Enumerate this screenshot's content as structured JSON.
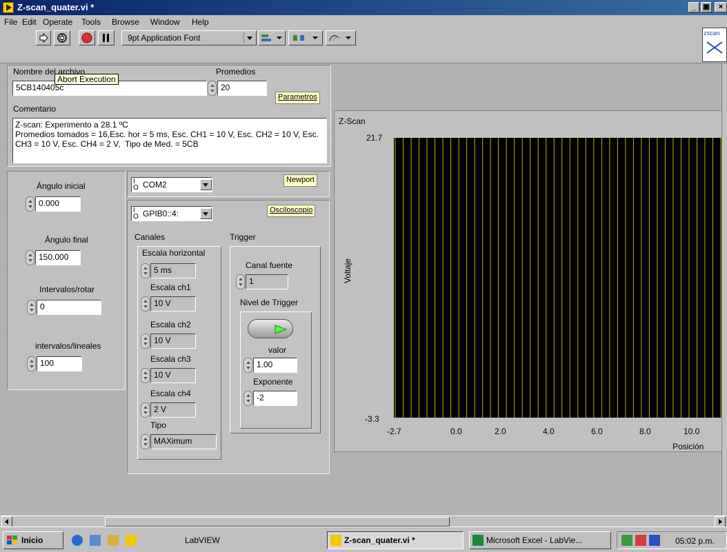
{
  "window": {
    "title": "Z-scan_quater.vi *",
    "controls": {
      "minimize": "_",
      "maximize": "▣",
      "close": "×"
    }
  },
  "menu": [
    "File",
    "Edit",
    "Operate",
    "Tools",
    "Browse",
    "Window",
    "Help"
  ],
  "toolbar": {
    "font": "9pt Application Font",
    "tooltip": "Abort Execution",
    "icon_label": "zscan"
  },
  "file_panel": {
    "filename_label": "Nombre del archivo",
    "filename_value": "5CB140405c",
    "promedios_label": "Promedios",
    "promedios_value": "20",
    "parametros_button": "Parametros",
    "comentario_label": "Comentario",
    "comentario_text": "Z-scan: Experimento a 28.1 ºC\nPromedios tomados = 16,Esc. hor = 5 ms, Esc. CH1 = 10 V, Esc. CH2 = 10 V, Esc. CH3 = 10 V, Esc. CH4 = 2 V,  Tipo de Med. = 5CB"
  },
  "motor_panel": {
    "angulo_inicial_label": "Ángulo inicial",
    "angulo_inicial_value": "0.000",
    "angulo_final_label": "Ángulo final",
    "angulo_final_value": "150.000",
    "intervalos_rotar_label": "Intervalos/rotar",
    "intervalos_rotar_value": "0",
    "intervalos_lineales_label": "intervalos/lineales",
    "intervalos_lineales_value": "100"
  },
  "newport": {
    "port": "COM2",
    "button": "Newport"
  },
  "osciloscopio": {
    "address": "GPIB0::4:",
    "button": "Osciloscopio",
    "canales_label": "Canales",
    "trigger_label": "Trigger",
    "escala_horizontal_label": "Escala horizontal",
    "escala_horizontal_value": "5 ms",
    "ch1_label": "Escala ch1",
    "ch1_value": "10 V",
    "ch2_label": "Escala ch2",
    "ch2_value": "10 V",
    "ch3_label": "Escala ch3",
    "ch3_value": "10 V",
    "ch4_label": "Escala ch4",
    "ch4_value": "2 V",
    "tipo_label": "Tipo",
    "tipo_value": "MAXimum",
    "canal_fuente_label": "Canal fuente",
    "canal_fuente_value": "1",
    "nivel_label": "Nivel de Trigger",
    "valor_label": "valor",
    "valor_value": "1.00",
    "exponente_label": "Exponente",
    "exponente_value": "-2"
  },
  "graph": {
    "title": "Z-Scan",
    "xlabel": "Posición",
    "ylabel": "Voltaje",
    "ymax_label": "21.7",
    "ymin_label": "-3.3",
    "xticks": [
      "-2.7",
      "0.0",
      "2.0",
      "4.0",
      "6.0",
      "8.0",
      "10.0"
    ],
    "grid_color": "#c8b400",
    "line_count": 42
  },
  "taskbar": {
    "start": "Inicio",
    "labview": "LabVIEW",
    "active_task": "Z-scan_quater.vi *",
    "excel_task": "Microsoft Excel - LabVie...",
    "clock": "05:02 p.m."
  }
}
